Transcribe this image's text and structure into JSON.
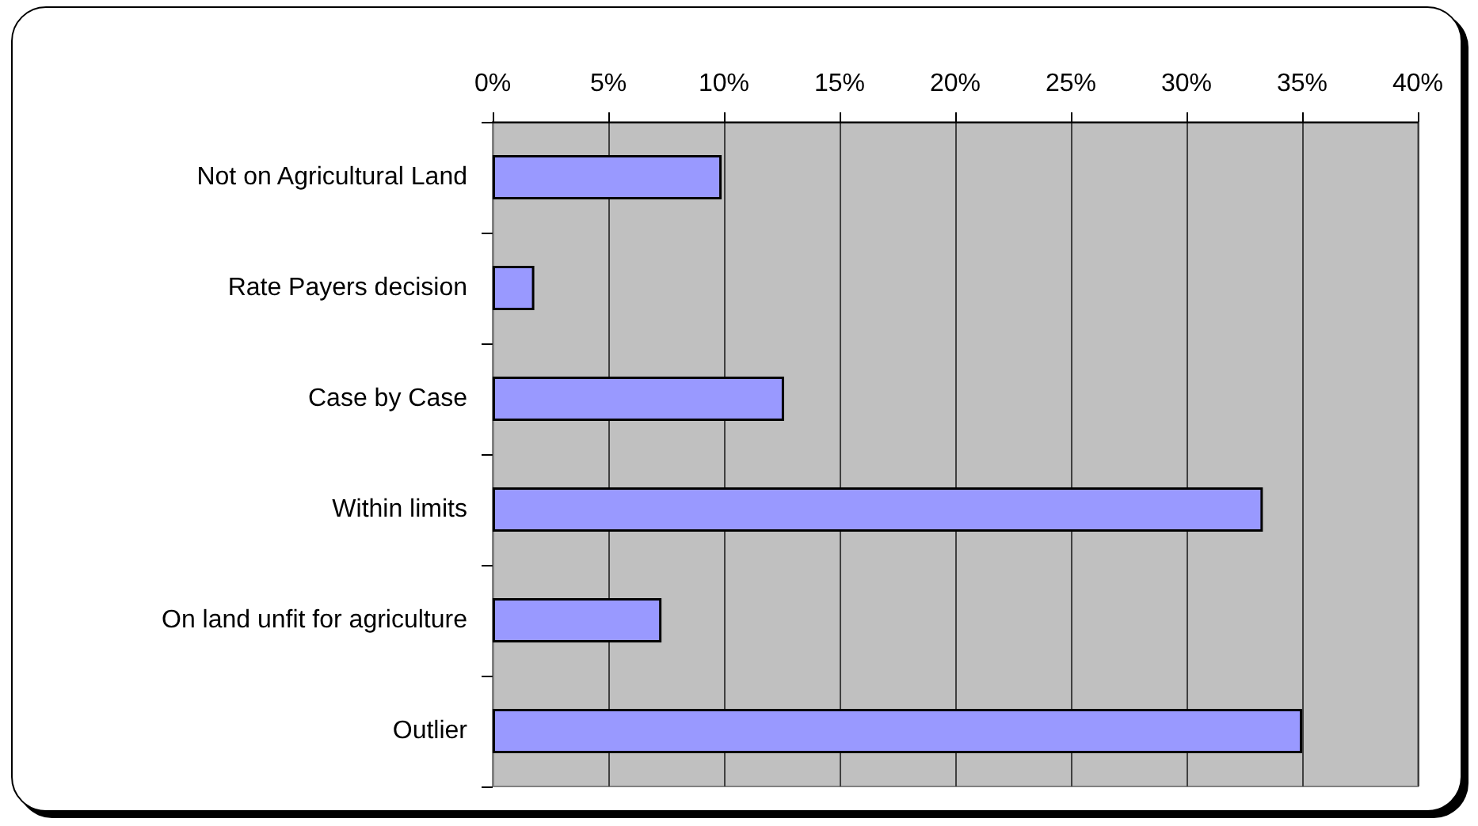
{
  "chart_data": {
    "type": "bar",
    "orientation": "horizontal",
    "categories": [
      "Not on Agricultural Land",
      "Rate Payers decision",
      "Case by Case",
      "Within limits",
      "On land unfit for agriculture",
      "Outlier"
    ],
    "values": [
      9.9,
      1.8,
      12.6,
      33.3,
      7.3,
      35.0
    ],
    "color": "#9999ff",
    "xlim": [
      0,
      40
    ],
    "xticks": [
      {
        "value": 0,
        "label": "0%"
      },
      {
        "value": 5,
        "label": "5%"
      },
      {
        "value": 10,
        "label": "10%"
      },
      {
        "value": 15,
        "label": "15%"
      },
      {
        "value": 20,
        "label": "20%"
      },
      {
        "value": 25,
        "label": "25%"
      },
      {
        "value": 30,
        "label": "30%"
      },
      {
        "value": 35,
        "label": "35%"
      },
      {
        "value": 40,
        "label": "40%"
      }
    ],
    "grid": "x"
  }
}
